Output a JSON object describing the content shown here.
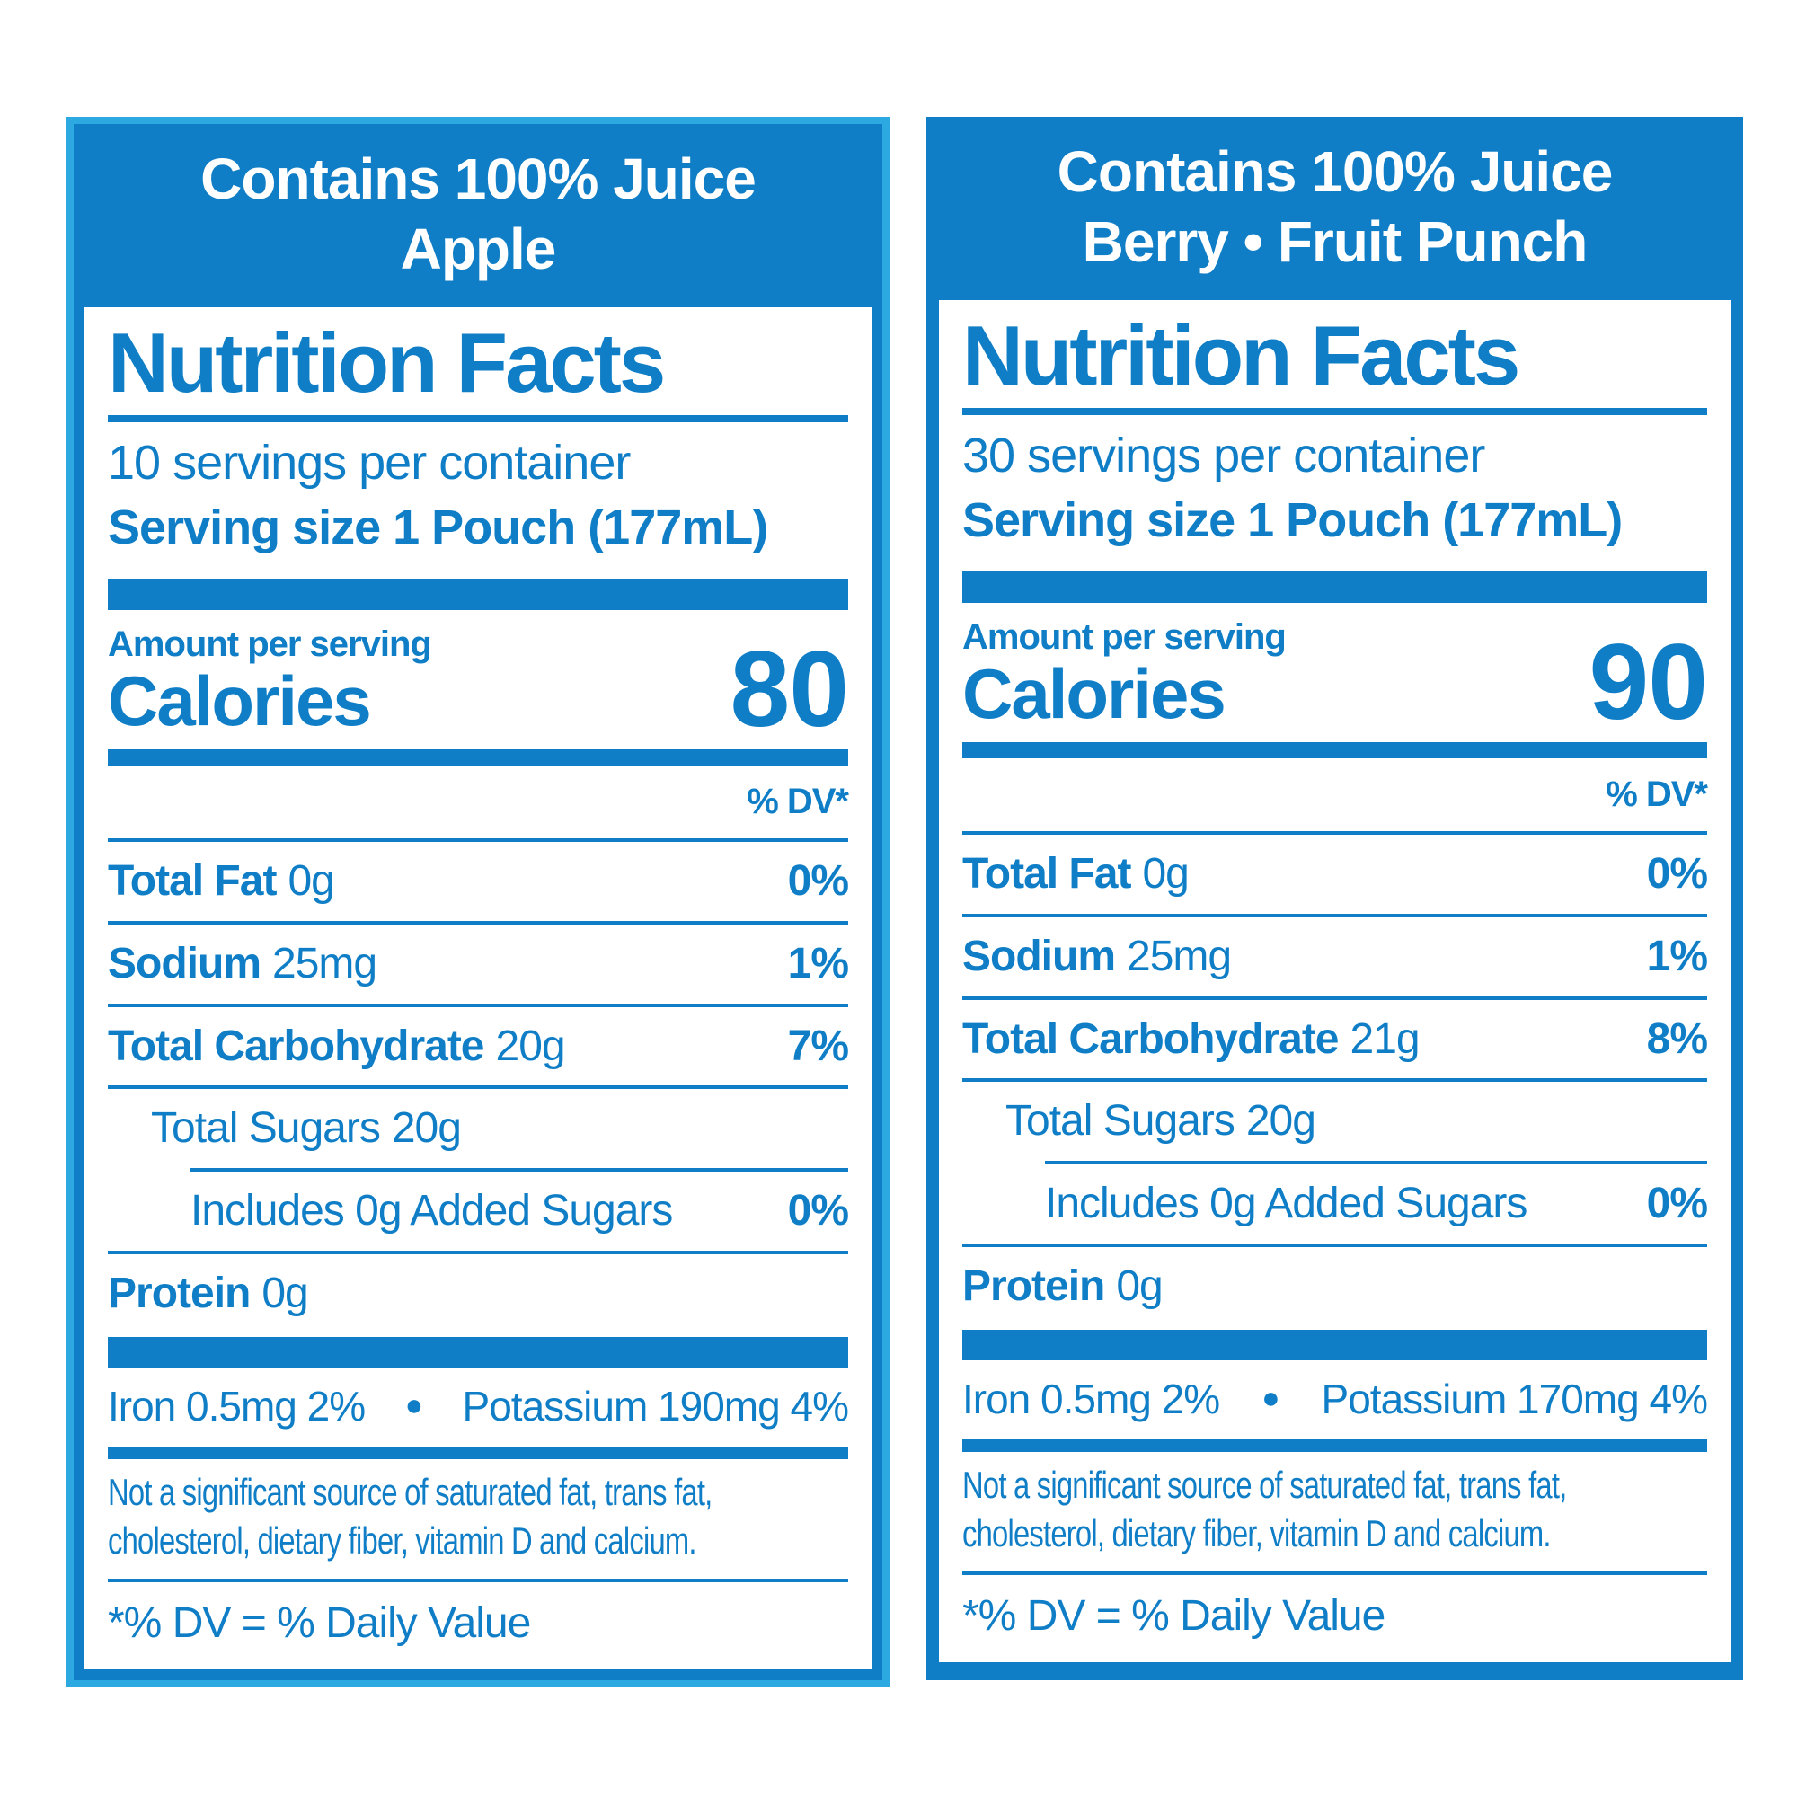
{
  "colors": {
    "blue": "#0f7ec6",
    "light_blue": "#2ba9e0",
    "white": "#ffffff"
  },
  "panels": [
    {
      "variant": "apple",
      "header_line1": "Contains 100% Juice",
      "header_line2": "Apple",
      "title": "Nutrition Facts",
      "servings_per_container": "10 servings per container",
      "serving_size": "Serving size 1 Pouch (177mL)",
      "amount_per_serving": "Amount per serving",
      "calories_label": "Calories",
      "calories_value": "80",
      "dv_header": "% DV*",
      "nutrients": [
        {
          "name": "Total Fat",
          "amount": "0g",
          "dv": "0%"
        },
        {
          "name": "Sodium",
          "amount": "25mg",
          "dv": "1%"
        },
        {
          "name": "Total Carbohydrate",
          "amount": "20g",
          "dv": "7%"
        },
        {
          "name": "Total Sugars",
          "amount": "20g",
          "dv": ""
        },
        {
          "name": "Includes 0g Added Sugars",
          "amount": "",
          "dv": "0%"
        },
        {
          "name": "Protein",
          "amount": "0g",
          "dv": ""
        }
      ],
      "minerals_left": "Iron 0.5mg 2%",
      "minerals_bullet": "●",
      "minerals_right": "Potassium 190mg 4%",
      "footnote_line1": "Not a significant source of saturated fat, trans fat,",
      "footnote_line2": "cholesterol, dietary fiber, vitamin D and calcium.",
      "dv_note": "*% DV = % Daily Value"
    },
    {
      "variant": "berry-fruit-punch",
      "header_line1": "Contains 100% Juice",
      "header_line2": "Berry • Fruit Punch",
      "title": "Nutrition Facts",
      "servings_per_container": "30 servings per container",
      "serving_size": "Serving size 1 Pouch (177mL)",
      "amount_per_serving": "Amount per serving",
      "calories_label": "Calories",
      "calories_value": "90",
      "dv_header": "% DV*",
      "nutrients": [
        {
          "name": "Total Fat",
          "amount": "0g",
          "dv": "0%"
        },
        {
          "name": "Sodium",
          "amount": "25mg",
          "dv": "1%"
        },
        {
          "name": "Total Carbohydrate",
          "amount": "21g",
          "dv": "8%"
        },
        {
          "name": "Total Sugars",
          "amount": "20g",
          "dv": ""
        },
        {
          "name": "Includes 0g Added Sugars",
          "amount": "",
          "dv": "0%"
        },
        {
          "name": "Protein",
          "amount": "0g",
          "dv": ""
        }
      ],
      "minerals_left": "Iron 0.5mg 2%",
      "minerals_bullet": "●",
      "minerals_right": "Potassium 170mg 4%",
      "footnote_line1": "Not a significant source of saturated fat, trans fat,",
      "footnote_line2": "cholesterol, dietary fiber, vitamin D and calcium.",
      "dv_note": "*% DV = % Daily Value"
    }
  ]
}
